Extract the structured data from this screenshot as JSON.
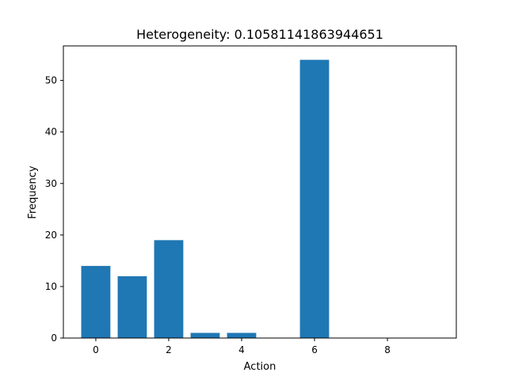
{
  "chart_data": {
    "type": "bar",
    "title": "Heterogeneity: 0.10581141863944651",
    "xlabel": "Action",
    "ylabel": "Frequency",
    "x": [
      0,
      1,
      2,
      3,
      4,
      5,
      6,
      7,
      8,
      9
    ],
    "values": [
      14,
      12,
      19,
      1,
      1,
      0,
      54,
      0,
      0,
      0
    ],
    "xlim": [
      -0.89,
      9.89
    ],
    "ylim": [
      0,
      56.7
    ],
    "xticks": [
      0,
      2,
      4,
      6,
      8
    ],
    "yticks": [
      0,
      10,
      20,
      30,
      40,
      50
    ],
    "grid": false,
    "colors": {
      "bar": "#1f77b4",
      "axis": "#000000",
      "background": "#ffffff"
    }
  }
}
